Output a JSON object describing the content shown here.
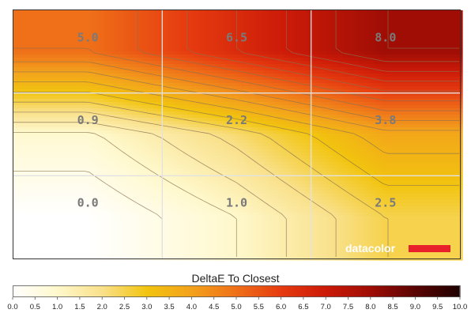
{
  "chart_data": {
    "type": "heatmap",
    "title": "",
    "grid": true,
    "rows": 3,
    "cols": 3,
    "values": [
      [
        5.0,
        6.5,
        8.0
      ],
      [
        0.9,
        2.2,
        3.8
      ],
      [
        0.0,
        1.0,
        2.5
      ]
    ],
    "labels": [
      [
        "5.0",
        "6.5",
        "8.0"
      ],
      [
        "0.9",
        "2.2",
        "3.8"
      ],
      [
        "0.0",
        "1.0",
        "2.5"
      ]
    ],
    "colorbar": {
      "title": "DeltaE To Closest",
      "range": [
        0,
        10
      ],
      "ticks": [
        "0.0",
        "0.5",
        "1.0",
        "1.5",
        "2.0",
        "2.5",
        "3.0",
        "3.5",
        "4.0",
        "4.5",
        "5.0",
        "5.5",
        "6.0",
        "6.5",
        "7.0",
        "7.5",
        "8.0",
        "8.5",
        "9.0",
        "9.5",
        "10.0"
      ]
    }
  },
  "branding": {
    "logo_text": "datacolor",
    "accent_color": "#e8202a"
  },
  "colorscale": [
    "#ffffff",
    "#fff8cc",
    "#f9e08a",
    "#f2c40f",
    "#f3a11c",
    "#ef7019",
    "#e63b10",
    "#cc1a08",
    "#9f0d05",
    "#5a0403",
    "#1e0000"
  ],
  "contour_levels": [
    0.5,
    1.0,
    1.5,
    2.0,
    2.5,
    3.0,
    3.5,
    4.0,
    4.5,
    5.0,
    5.5,
    6.0,
    6.5,
    7.0,
    7.5,
    8.0
  ]
}
